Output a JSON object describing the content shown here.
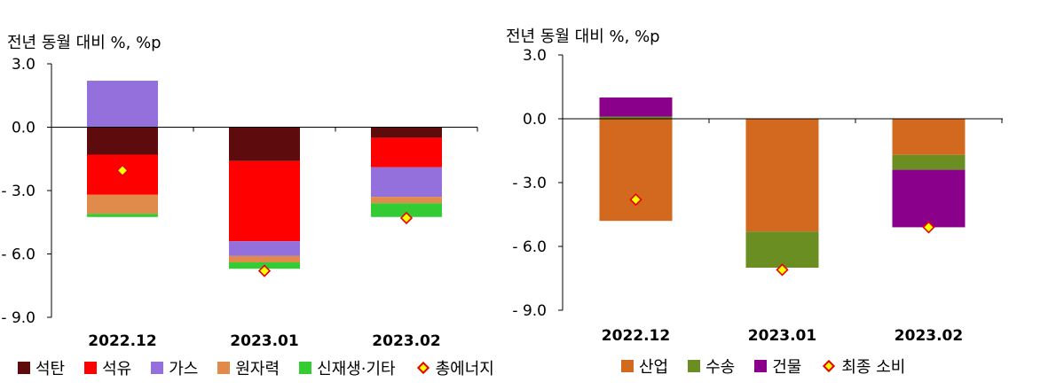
{
  "charts": [
    {
      "unit_label": "전년 동월 대비 %, %p",
      "legend": [
        {
          "label": "석탄",
          "color": "#5e0b0e",
          "kind": "bar"
        },
        {
          "label": "석유",
          "color": "#ff0000",
          "kind": "bar"
        },
        {
          "label": "가스",
          "color": "#9370db",
          "kind": "bar"
        },
        {
          "label": "원자력",
          "color": "#e08a4c",
          "kind": "bar"
        },
        {
          "label": "신재생·기타",
          "color": "#33cc33",
          "kind": "bar"
        },
        {
          "label": "총에너지",
          "color": "#ffff00",
          "stroke": "#e60000",
          "kind": "diamond"
        }
      ]
    },
    {
      "unit_label": "전년 동월 대비 %, %p",
      "legend": [
        {
          "label": "산업",
          "color": "#d2691e",
          "kind": "bar"
        },
        {
          "label": "수송",
          "color": "#6b8e23",
          "kind": "bar"
        },
        {
          "label": "건물",
          "color": "#8b008b",
          "kind": "bar"
        },
        {
          "label": "최종 소비",
          "color": "#ffff00",
          "stroke": "#e60000",
          "kind": "diamond"
        }
      ]
    }
  ],
  "chart_data": [
    {
      "type": "bar",
      "stacked": true,
      "categories": [
        "2022.12",
        "2023.01",
        "2023.02"
      ],
      "ylim": [
        -9.0,
        3.0
      ],
      "yticks": [
        3.0,
        0.0,
        -3.0,
        -6.0,
        -9.0
      ],
      "ytick_labels": [
        "3.0",
        "0.0",
        "- 3.0",
        "- 6.0",
        "- 9.0"
      ],
      "series": [
        {
          "name": "석탄",
          "color": "#5e0b0e",
          "values": [
            -1.3,
            -1.6,
            -0.5
          ]
        },
        {
          "name": "석유",
          "color": "#ff0000",
          "values": [
            -1.9,
            -3.8,
            -1.4
          ]
        },
        {
          "name": "가스",
          "color": "#9370db",
          "values": [
            2.2,
            -0.7,
            -1.4
          ]
        },
        {
          "name": "원자력",
          "color": "#e08a4c",
          "values": [
            -0.9,
            -0.3,
            -0.3
          ]
        },
        {
          "name": "신재생·기타",
          "color": "#33cc33",
          "values": [
            -0.15,
            -0.3,
            -0.65
          ]
        }
      ],
      "markers": {
        "name": "총에너지",
        "values": [
          -2.05,
          -6.8,
          -4.3
        ]
      }
    },
    {
      "type": "bar",
      "stacked": true,
      "categories": [
        "2022.12",
        "2023.01",
        "2023.02"
      ],
      "ylim": [
        -9.0,
        3.0
      ],
      "yticks": [
        3.0,
        0.0,
        -3.0,
        -6.0,
        -9.0
      ],
      "ytick_labels": [
        "3.0",
        "0.0",
        "- 3.0",
        "- 6.0",
        "- 9.0"
      ],
      "series": [
        {
          "name": "산업",
          "color": "#d2691e",
          "values": [
            -4.8,
            -5.3,
            -1.7
          ]
        },
        {
          "name": "수송",
          "color": "#6b8e23",
          "values": [
            0.1,
            -1.7,
            -0.7
          ]
        },
        {
          "name": "건물",
          "color": "#8b008b",
          "values": [
            0.9,
            0.0,
            -2.7
          ]
        }
      ],
      "markers": {
        "name": "최종 소비",
        "values": [
          -3.8,
          -7.1,
          -5.1
        ]
      }
    }
  ]
}
